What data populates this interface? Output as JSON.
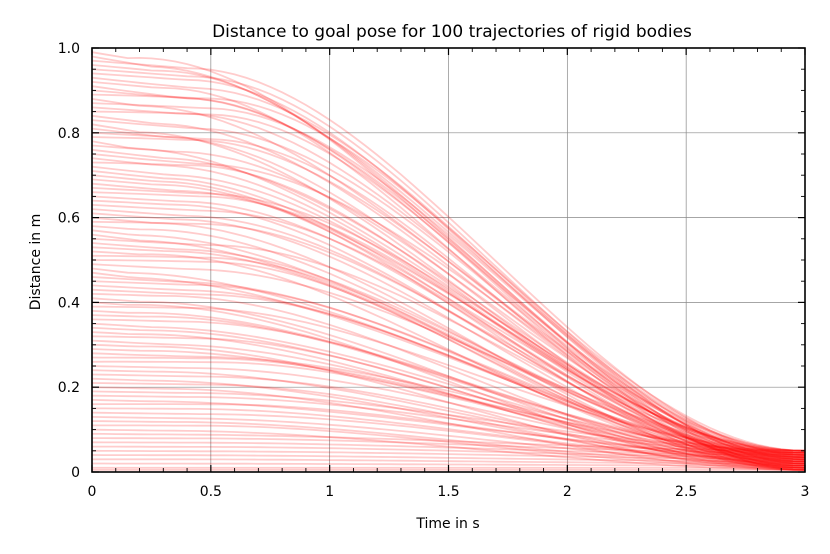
{
  "chart_data": {
    "type": "line",
    "title": "Distance to goal pose for 100 trajectories of rigid bodies",
    "xlabel": "Time in s",
    "ylabel": "Distance in m",
    "xlim": [
      0,
      3
    ],
    "ylim": [
      0,
      1
    ],
    "x_ticks": [
      "0",
      "0.5",
      "1",
      "1.5",
      "2",
      "2.5",
      "3"
    ],
    "y_ticks": [
      "0",
      "0.2",
      "0.4",
      "0.6",
      "0.8",
      "1.0"
    ],
    "grid": true,
    "line_color": "#ff0000",
    "series_count": 100,
    "initial_distances": [
      0.99,
      0.98,
      0.97,
      0.96,
      0.95,
      0.94,
      0.93,
      0.92,
      0.91,
      0.9,
      0.89,
      0.88,
      0.87,
      0.86,
      0.85,
      0.84,
      0.83,
      0.82,
      0.81,
      0.8,
      0.79,
      0.78,
      0.77,
      0.76,
      0.75,
      0.74,
      0.73,
      0.72,
      0.71,
      0.7,
      0.69,
      0.68,
      0.67,
      0.66,
      0.65,
      0.64,
      0.63,
      0.62,
      0.61,
      0.6,
      0.59,
      0.58,
      0.57,
      0.56,
      0.55,
      0.54,
      0.53,
      0.52,
      0.51,
      0.5,
      0.49,
      0.48,
      0.47,
      0.46,
      0.45,
      0.44,
      0.43,
      0.42,
      0.41,
      0.4,
      0.39,
      0.38,
      0.37,
      0.36,
      0.35,
      0.34,
      0.33,
      0.32,
      0.31,
      0.3,
      0.29,
      0.28,
      0.27,
      0.26,
      0.25,
      0.24,
      0.23,
      0.22,
      0.21,
      0.2,
      0.19,
      0.18,
      0.17,
      0.16,
      0.15,
      0.14,
      0.13,
      0.12,
      0.11,
      0.1,
      0.09,
      0.08,
      0.07,
      0.06,
      0.05,
      0.04,
      0.03,
      0.02,
      0.01,
      0.005
    ],
    "final_distances": [
      0.05,
      0.045,
      0.04,
      0.035,
      0.03,
      0.025,
      0.02,
      0.015,
      0.01,
      0.005
    ]
  }
}
